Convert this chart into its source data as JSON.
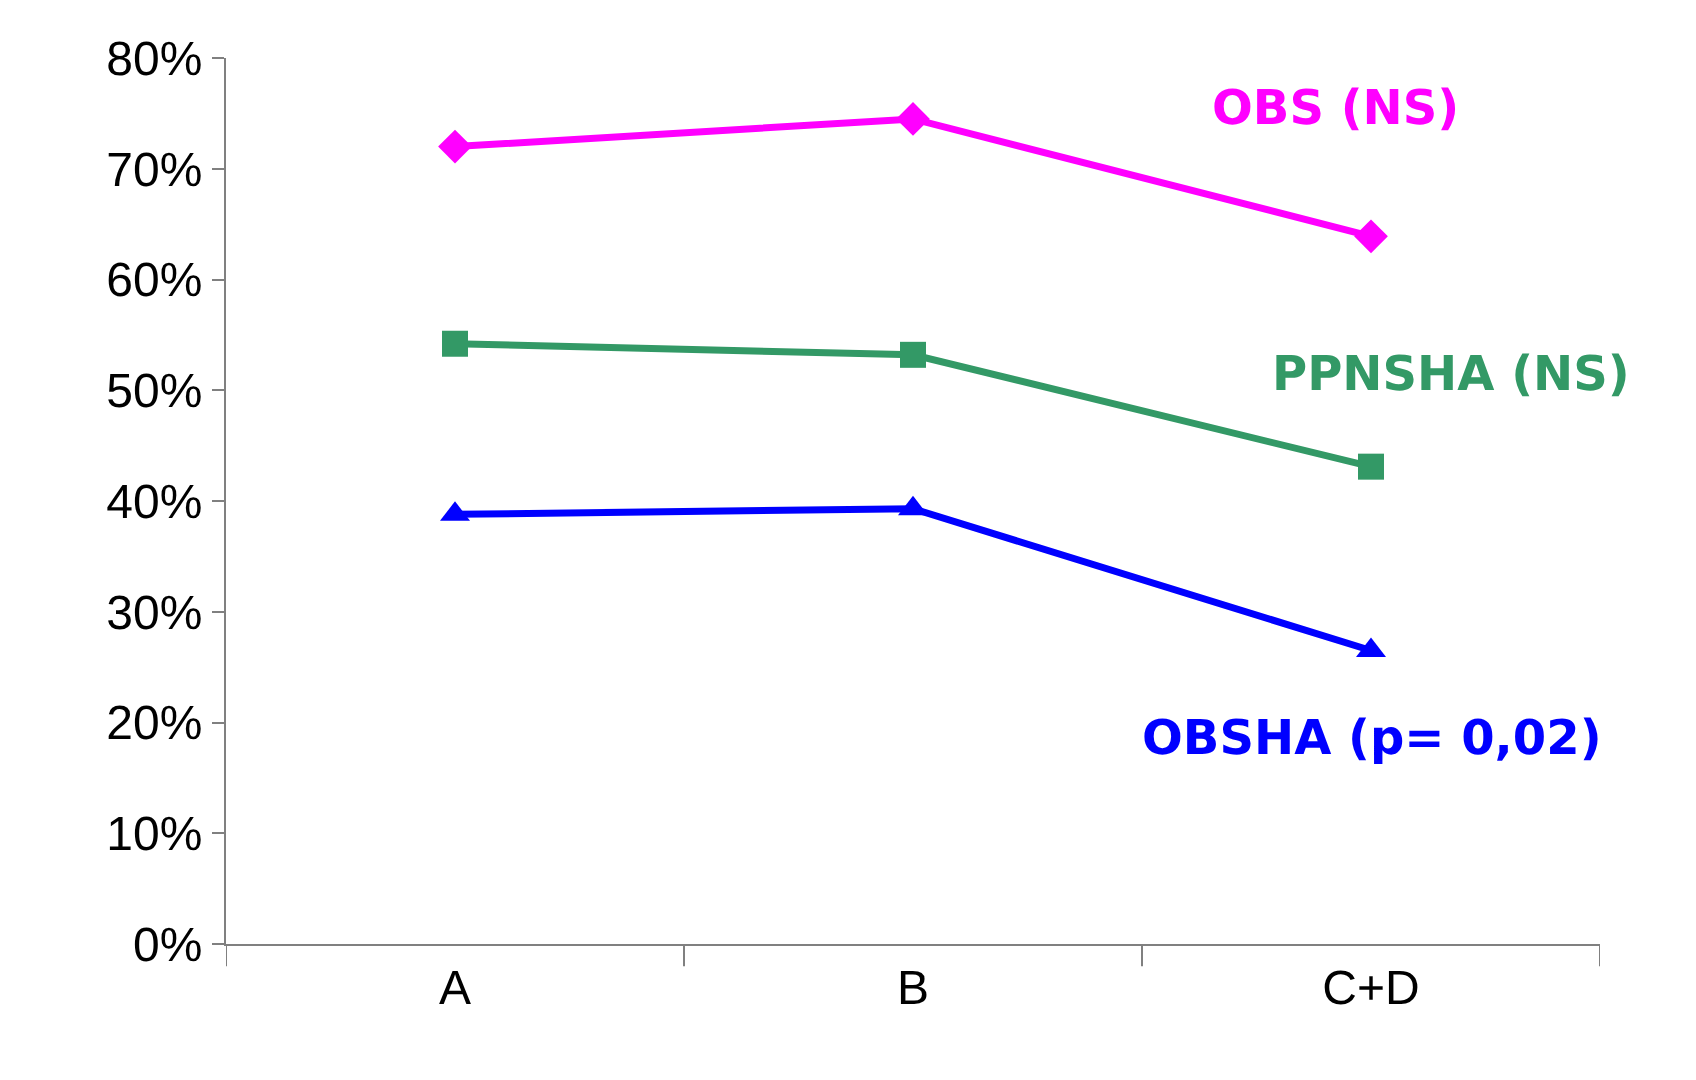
{
  "chart_data": {
    "type": "line",
    "categories": [
      "A",
      "B",
      "C+D"
    ],
    "series": [
      {
        "name": "OBS (NS)",
        "color": "#ff00ff",
        "marker": "diamond",
        "values": [
          72.0,
          74.5,
          63.9
        ]
      },
      {
        "name": "PPNSHA (NS)",
        "color": "#339966",
        "marker": "square",
        "values": [
          54.2,
          53.2,
          43.1
        ]
      },
      {
        "name": "OBSHA (p= 0,02)",
        "color": "#0000ff",
        "marker": "triangle",
        "values": [
          38.8,
          39.3,
          26.5
        ]
      }
    ],
    "ylim": [
      0,
      80
    ],
    "yticks": [
      {
        "value": 0,
        "label": "0%"
      },
      {
        "value": 10,
        "label": "10%"
      },
      {
        "value": 20,
        "label": "20%"
      },
      {
        "value": 30,
        "label": "30%"
      },
      {
        "value": 40,
        "label": "40%"
      },
      {
        "value": 50,
        "label": "50%"
      },
      {
        "value": 60,
        "label": "60%"
      },
      {
        "value": 70,
        "label": "70%"
      },
      {
        "value": 80,
        "label": "80%"
      }
    ],
    "legend": false,
    "line_style": "solid"
  }
}
